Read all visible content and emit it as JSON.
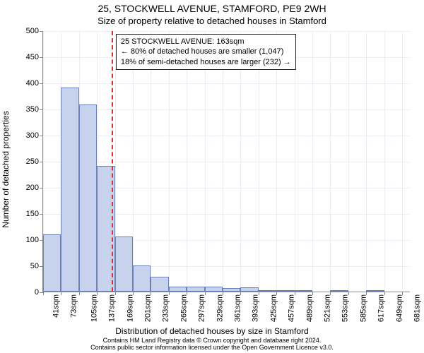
{
  "titles": {
    "main": "25, STOCKWELL AVENUE, STAMFORD, PE9 2WH",
    "sub": "Size of property relative to detached houses in Stamford"
  },
  "axes": {
    "y_label": "Number of detached properties",
    "x_label": "Distribution of detached houses by size in Stamford"
  },
  "footer": {
    "line1": "Contains HM Land Registry data © Crown copyright and database right 2024.",
    "line2": "Contains public sector information licensed under the Open Government Licence v3.0."
  },
  "annotation": {
    "line1": "25 STOCKWELL AVENUE: 163sqm",
    "line2": "← 80% of detached houses are smaller (1,047)",
    "line3": "18% of semi-detached houses are larger (232) →"
  },
  "chart": {
    "type": "histogram",
    "ylim": [
      0,
      500
    ],
    "ytick_step": 50,
    "xlim": [
      41,
      696
    ],
    "xtick_step": 32,
    "xtick_unit": "sqm",
    "bar_width_units": 32,
    "reference_x": 163,
    "reference_color": "#d33333",
    "bar_fill": "#c7d2ec",
    "bar_stroke": "#6b7fb8",
    "grid_color": "#ececf5",
    "background_color": "#ffffff",
    "title_fontsize": 14,
    "label_fontsize": 12,
    "tick_fontsize": 11,
    "bars": [
      {
        "x0": 41,
        "count": 110
      },
      {
        "x0": 73,
        "count": 390
      },
      {
        "x0": 105,
        "count": 358
      },
      {
        "x0": 137,
        "count": 240
      },
      {
        "x0": 169,
        "count": 105
      },
      {
        "x0": 201,
        "count": 50
      },
      {
        "x0": 233,
        "count": 28
      },
      {
        "x0": 265,
        "count": 10
      },
      {
        "x0": 297,
        "count": 10
      },
      {
        "x0": 329,
        "count": 9
      },
      {
        "x0": 361,
        "count": 7
      },
      {
        "x0": 393,
        "count": 8
      },
      {
        "x0": 425,
        "count": 2
      },
      {
        "x0": 457,
        "count": 2
      },
      {
        "x0": 489,
        "count": 1
      },
      {
        "x0": 521,
        "count": 0
      },
      {
        "x0": 553,
        "count": 1
      },
      {
        "x0": 585,
        "count": 0
      },
      {
        "x0": 617,
        "count": 1
      },
      {
        "x0": 649,
        "count": 0
      },
      {
        "x0": 681,
        "count": 0
      }
    ]
  }
}
